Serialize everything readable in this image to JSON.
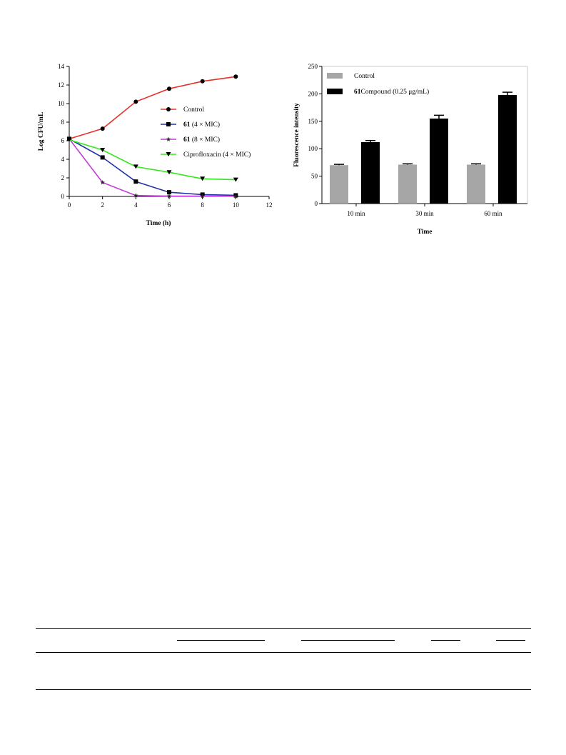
{
  "chart_data": [
    {
      "type": "line",
      "xlabel": "Time (h)",
      "ylabel": "Log CFU/mL",
      "xlim": [
        0,
        12
      ],
      "ylim": [
        0,
        14
      ],
      "xticks": [
        "0",
        "2",
        "4",
        "6",
        "8",
        "10",
        "12"
      ],
      "yticks": [
        "0",
        "2",
        "4",
        "6",
        "8",
        "10",
        "12",
        "14"
      ],
      "legend_position": "right-middle",
      "grid": false,
      "series": [
        {
          "name": "Control",
          "bold_prefix": "",
          "color": "#e8302a",
          "marker": "circle",
          "x": [
            0,
            2,
            4,
            6,
            8,
            10
          ],
          "y": [
            6.2,
            7.3,
            10.2,
            11.6,
            12.4,
            12.9
          ]
        },
        {
          "name": " (4 × MIC)",
          "bold_prefix": "61",
          "color": "#1f2fa8",
          "marker": "square",
          "x": [
            0,
            2,
            4,
            6,
            8,
            10
          ],
          "y": [
            6.2,
            4.2,
            1.6,
            0.45,
            0.2,
            0.12
          ]
        },
        {
          "name": " (8 × MIC)",
          "bold_prefix": "61",
          "color": "#c23ad6",
          "marker": "star",
          "x": [
            0,
            2,
            4,
            6,
            8,
            10
          ],
          "y": [
            6.2,
            1.5,
            0.1,
            0.03,
            0.03,
            0.02
          ]
        },
        {
          "name": "Ciprofloxacin (4 × MIC)",
          "bold_prefix": "",
          "color": "#33e81c",
          "marker": "triangle-down",
          "x": [
            0,
            2,
            4,
            6,
            8,
            10
          ],
          "y": [
            6.1,
            5.0,
            3.2,
            2.6,
            1.9,
            1.8
          ]
        }
      ]
    },
    {
      "type": "bar",
      "xlabel": "Time",
      "ylabel": "Fluorescence intensity",
      "categories": [
        "10 min",
        "30 min",
        "60 min"
      ],
      "ylim": [
        0,
        250
      ],
      "yticks": [
        "0",
        "50",
        "100",
        "150",
        "200",
        "250"
      ],
      "legend_position": "top-left",
      "grid": false,
      "series": [
        {
          "name": "Control",
          "bold_prefix": "",
          "name_suffix": "",
          "color": "#a6a6a6",
          "values": [
            70,
            71,
            71
          ],
          "errors": [
            1.5,
            1.5,
            1.5
          ]
        },
        {
          "name": "Compound ",
          "bold_prefix": "61",
          "name_suffix": " (0.25 μg/mL)",
          "color": "#000000",
          "values": [
            112,
            155,
            198
          ],
          "errors": [
            3,
            6,
            5
          ]
        }
      ]
    }
  ]
}
